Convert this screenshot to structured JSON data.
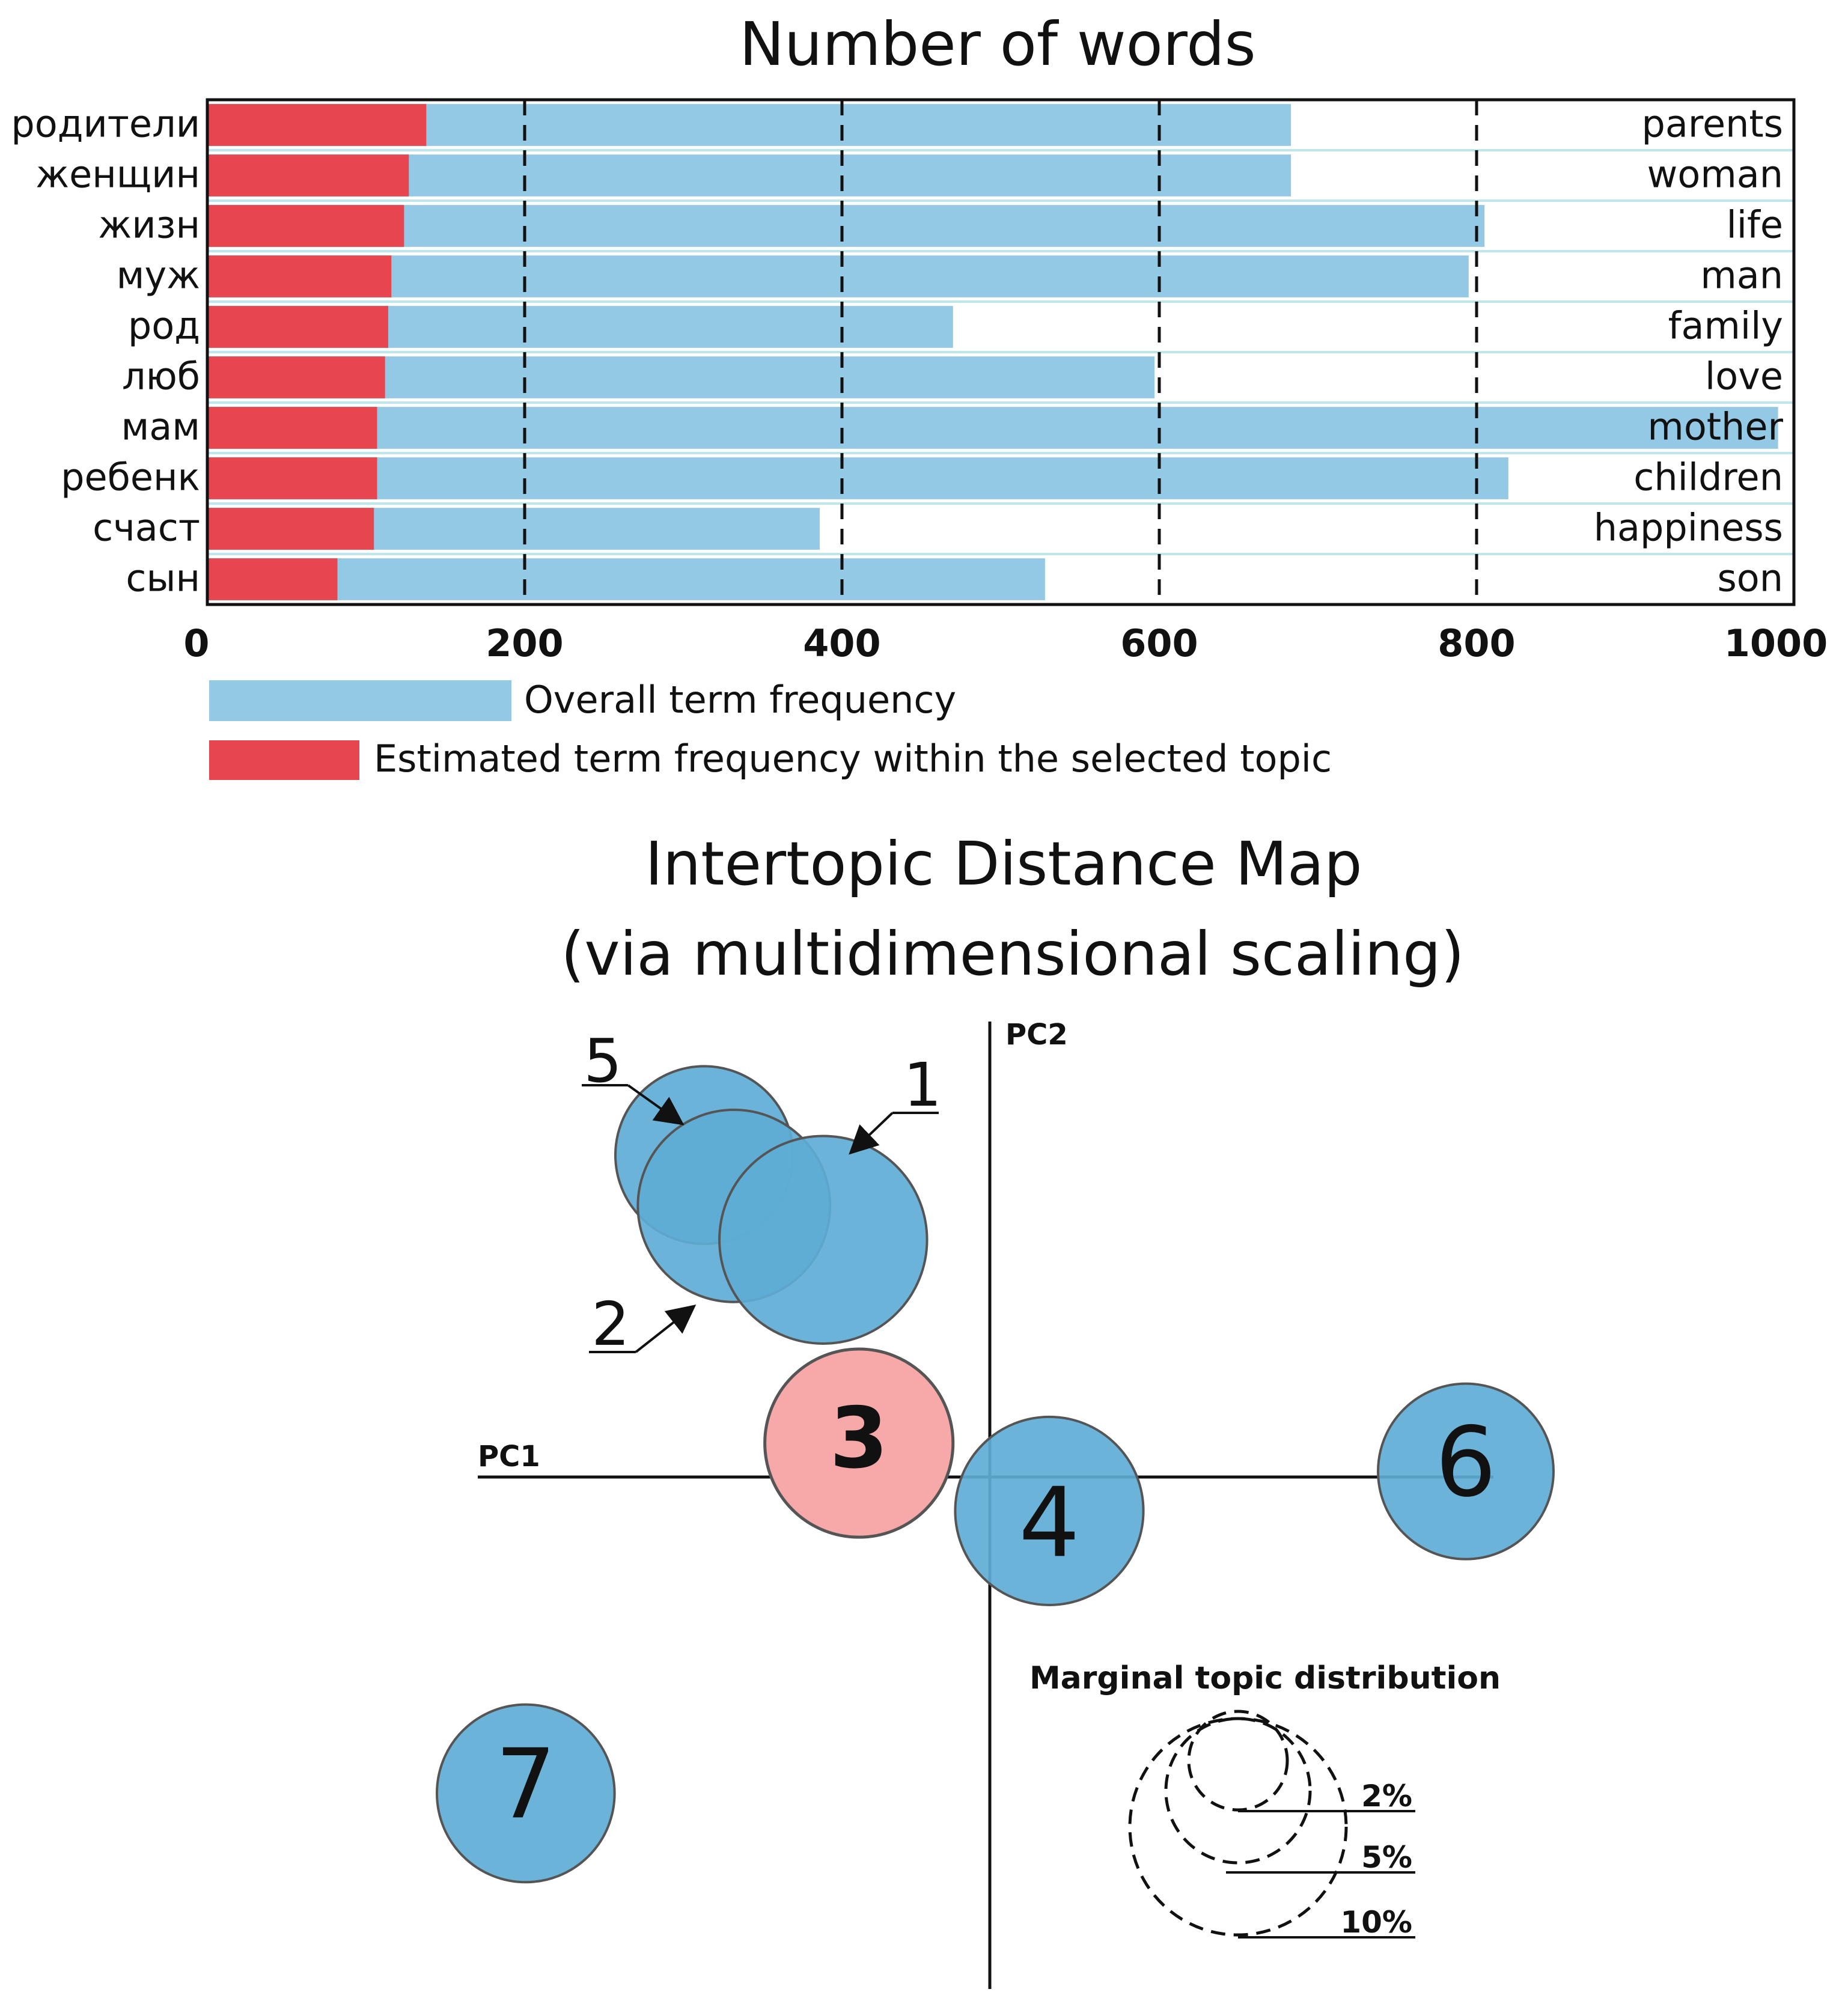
{
  "chart_data": [
    {
      "type": "bar",
      "orientation": "horizontal",
      "title": "Number of words",
      "categories": [
        "родители",
        "женщин",
        "жизн",
        "муж",
        "род",
        "люб",
        "мам",
        "ребенк",
        "счаст",
        "сын"
      ],
      "translations": [
        "parents",
        "woman",
        "life",
        "man",
        "family",
        "love",
        "mother",
        "children",
        "happiness",
        "son"
      ],
      "series": [
        {
          "name": "Overall term frequency",
          "color": "#93C9E4",
          "values": [
            683,
            683,
            805,
            795,
            470,
            597,
            990,
            820,
            386,
            528
          ]
        },
        {
          "name": "Estimated term frequency within the selected topic",
          "color": "#E8464E",
          "values": [
            138,
            127,
            124,
            116,
            114,
            112,
            107,
            107,
            105,
            82
          ]
        }
      ],
      "xlim": [
        0,
        1000
      ],
      "xticks": [
        "0",
        "200",
        "400",
        "600",
        "800",
        "1000"
      ],
      "xtick_values": [
        0,
        200,
        400,
        600,
        800,
        1000
      ],
      "grid": true
    },
    {
      "type": "scatter",
      "subtype": "bubble",
      "title_lines": [
        "Intertopic Distance Map",
        "(via multidimensional scaling)"
      ],
      "xlabel": "PC1",
      "ylabel": "PC2",
      "xlim": [
        -1,
        1
      ],
      "ylim": [
        -1,
        1
      ],
      "topics": [
        {
          "id": "1",
          "x": -0.28,
          "y": 0.42,
          "size_pct": 5.6,
          "color": "#5EADD5",
          "selected": false
        },
        {
          "id": "2",
          "x": -0.43,
          "y": 0.48,
          "size_pct": 4.8,
          "color": "#5EADD5",
          "selected": false
        },
        {
          "id": "5",
          "x": -0.48,
          "y": 0.57,
          "size_pct": 4.1,
          "color": "#5EADD5",
          "selected": false
        },
        {
          "id": "3",
          "x": -0.22,
          "y": 0.06,
          "size_pct": 4.6,
          "color": "#F7A8A8",
          "selected": true
        },
        {
          "id": "4",
          "x": 0.1,
          "y": -0.06,
          "size_pct": 4.6,
          "color": "#5EADD5",
          "selected": false
        },
        {
          "id": "6",
          "x": 0.8,
          "y": 0.01,
          "size_pct": 4.0,
          "color": "#5EADD5",
          "selected": false
        },
        {
          "id": "7",
          "x": -0.78,
          "y": -0.56,
          "size_pct": 4.1,
          "color": "#5EADD5",
          "selected": false
        }
      ],
      "arrow_labels": [
        "1",
        "2",
        "5"
      ],
      "legend": {
        "title": "Marginal topic distribution",
        "placement": "bottom-right",
        "entries": [
          "2%",
          "5%",
          "10%"
        ],
        "values": [
          2,
          5,
          10
        ]
      }
    }
  ]
}
